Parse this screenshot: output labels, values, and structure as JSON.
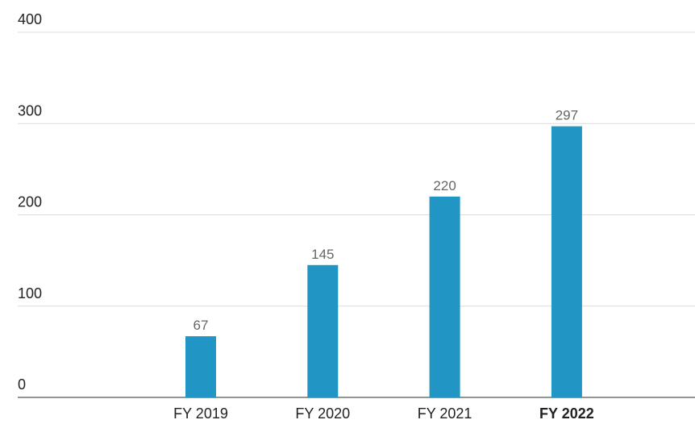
{
  "chart_data": {
    "type": "bar",
    "categories": [
      "FY 2019",
      "FY 2020",
      "FY 2021",
      "FY 2022"
    ],
    "values": [
      67,
      145,
      220,
      297
    ],
    "color": "#2196c4",
    "ylim": [
      0,
      400
    ],
    "yticks": [
      0,
      100,
      200,
      300,
      400
    ],
    "grid": true
  }
}
